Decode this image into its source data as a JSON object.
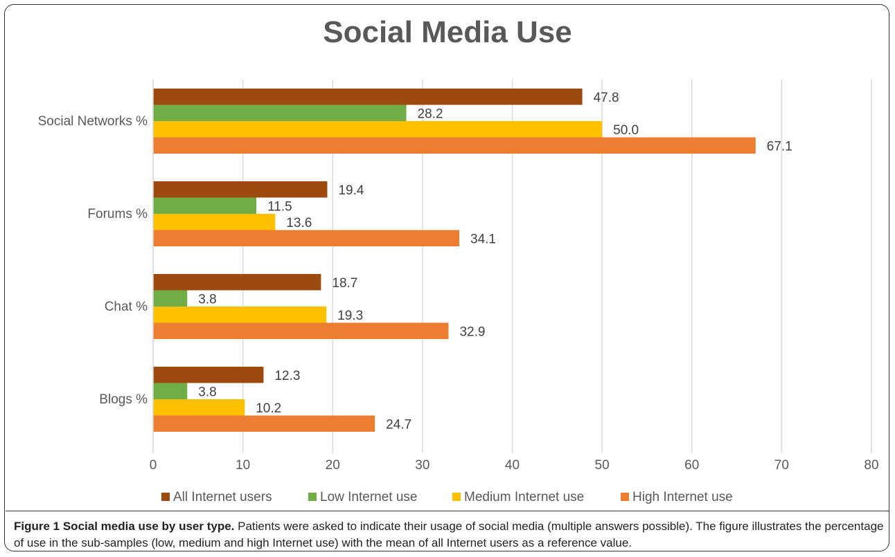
{
  "chart_data": {
    "type": "bar",
    "orientation": "horizontal",
    "title": "Social Media Use",
    "categories": [
      "Social Networks %",
      "Forums %",
      "Chat %",
      "Blogs %"
    ],
    "series": [
      {
        "name": "All Internet users",
        "color": "#9C4A0E",
        "values": [
          47.8,
          19.4,
          18.7,
          12.3
        ]
      },
      {
        "name": "Low Internet use",
        "color": "#70AD47",
        "values": [
          28.2,
          11.5,
          3.8,
          3.8
        ]
      },
      {
        "name": "Medium Internet use",
        "color": "#FFC000",
        "values": [
          50.0,
          13.6,
          19.3,
          10.2
        ]
      },
      {
        "name": "High Internet use",
        "color": "#ED7D31",
        "values": [
          67.1,
          34.1,
          32.9,
          24.7
        ]
      }
    ],
    "data_labels": [
      [
        "47.8",
        "19.4",
        "18.7",
        "12.3"
      ],
      [
        "28.2",
        "11.5",
        "3.8",
        "3.8"
      ],
      [
        "50.0",
        "13.6",
        "19.3",
        "10.2"
      ],
      [
        "67.1",
        "34.1",
        "32.9",
        "24.7"
      ]
    ],
    "xlim": [
      0,
      80
    ],
    "xticks": [
      "0",
      "10",
      "20",
      "30",
      "40",
      "50",
      "60",
      "70",
      "80"
    ],
    "grid": true,
    "legend_position": "bottom"
  },
  "caption": {
    "label": "Figure 1 Social media use by user type.",
    "text": " Patients were asked to indicate their usage of social media (multiple answers possible). The figure illustrates the percentage of use in the sub-samples (low, medium and high Internet use) with the mean of all Internet users as a reference value."
  }
}
